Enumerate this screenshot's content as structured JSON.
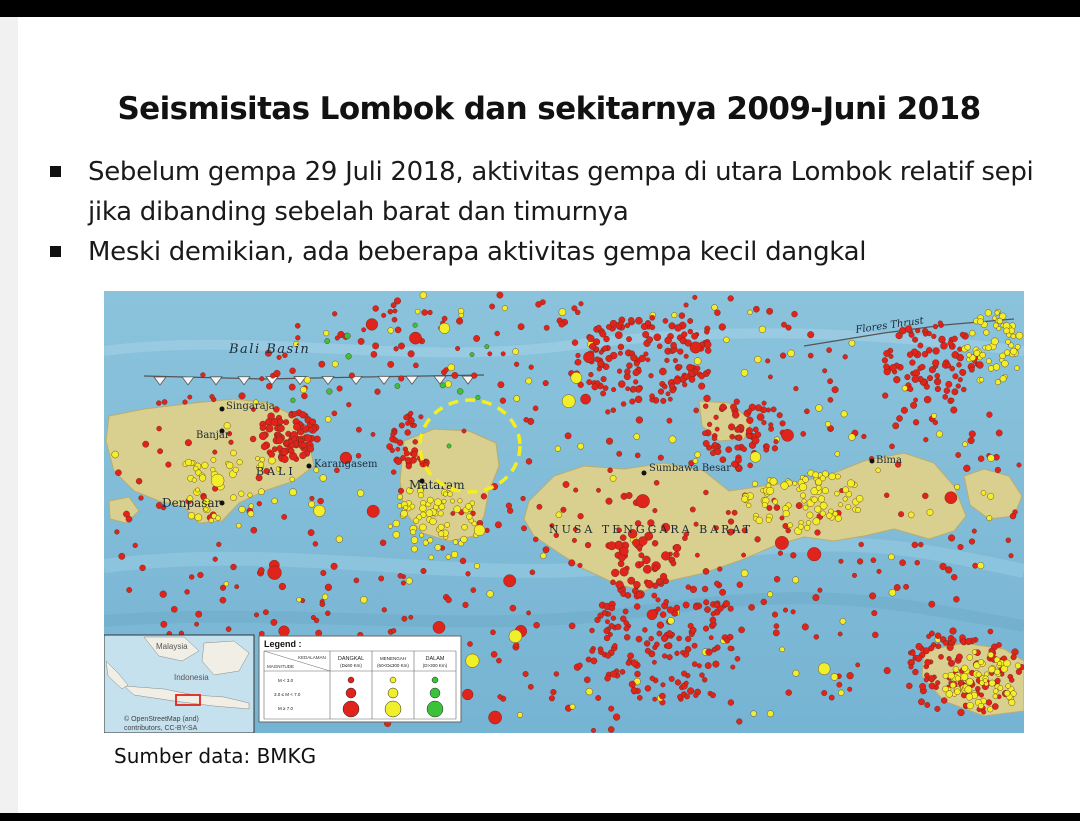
{
  "slide": {
    "title": "Seismisitas Lombok dan sekitarnya 2009-Juni 2018",
    "bullets": [
      {
        "text": "Sebelum gempa 29 Juli 2018, aktivitas gempa di utara Lombok relatif sepi jika dibanding sebelah barat dan timurnya"
      },
      {
        "text": "Meski demikian, ada beberapa aktivitas gempa kecil dangkal"
      }
    ],
    "source": "Sumber data: BMKG"
  },
  "map": {
    "labels": {
      "bali_basin": "Bali Basin",
      "flores_thrust": "Flores Thrust",
      "singaraja": "Singaraja",
      "banjar": "Banjar",
      "bali": "BALI",
      "karangasem": "Karangasem",
      "denpasar": "Denpasar",
      "mataram": "Mataram",
      "sumbawa_besar": "Sumbawa Besar",
      "nusa_tenggara_barat": "NUSA TENGGARA BARAT",
      "bima": "Bima"
    },
    "colors": {
      "sea": "#8cc4dd",
      "land": "#d9cf8e",
      "shallow": "#e0241b",
      "intermediate": "#f1ee2a",
      "deep": "#3cc13a",
      "highlight": "#f5ef1c"
    },
    "legend": {
      "title": "Legend :",
      "corner_top": "KEDALAMAN",
      "corner_bottom": "MAGNITUDE",
      "columns": [
        "DANGKAL",
        "MENENGAH",
        "DALAM"
      ],
      "column_ranges": [
        "(D≤60 Km)",
        "(60<D≤300 Km)",
        "(D>300 Km)"
      ],
      "rows": [
        "M < 3.0",
        "3.0 ≤ M < 7.0",
        "M ≥ 7.0"
      ]
    },
    "inset": {
      "label_malaysia": "Malaysia",
      "label_indonesia": "Indonesia",
      "attribution_line1": "© OpenStreetMap (and)",
      "attribution_line2": "contributors, CC-BY-SA"
    }
  }
}
